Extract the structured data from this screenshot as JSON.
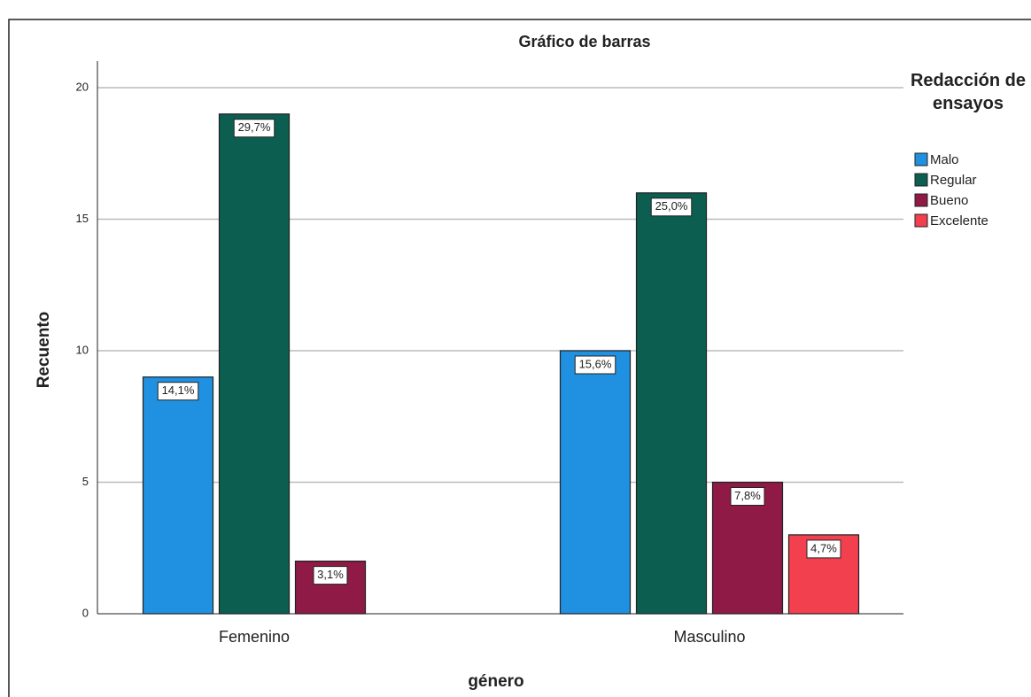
{
  "chart_data": {
    "type": "bar",
    "title": "Gráfico de barras",
    "x_label": "género",
    "y_label": "Recuento",
    "legend_title": "Redacción de ensayos",
    "categories": [
      "Femenino",
      "Masculino"
    ],
    "series": [
      {
        "name": "Malo",
        "color": "#2090e0",
        "values": [
          9,
          10
        ],
        "labels": [
          "14,1%",
          "15,6%"
        ]
      },
      {
        "name": "Regular",
        "color": "#0b5e50",
        "values": [
          19,
          16
        ],
        "labels": [
          "29,7%",
          "25,0%"
        ]
      },
      {
        "name": "Bueno",
        "color": "#8e1a45",
        "values": [
          2,
          5
        ],
        "labels": [
          "3,1%",
          "7,8%"
        ]
      },
      {
        "name": "Excelente",
        "color": "#f2404f",
        "values": [
          null,
          3
        ],
        "labels": [
          null,
          "4,7%"
        ]
      }
    ],
    "ylim": [
      0,
      20
    ],
    "yticks": [
      0,
      5,
      10,
      15,
      20
    ],
    "grid": true,
    "legend": "right"
  }
}
